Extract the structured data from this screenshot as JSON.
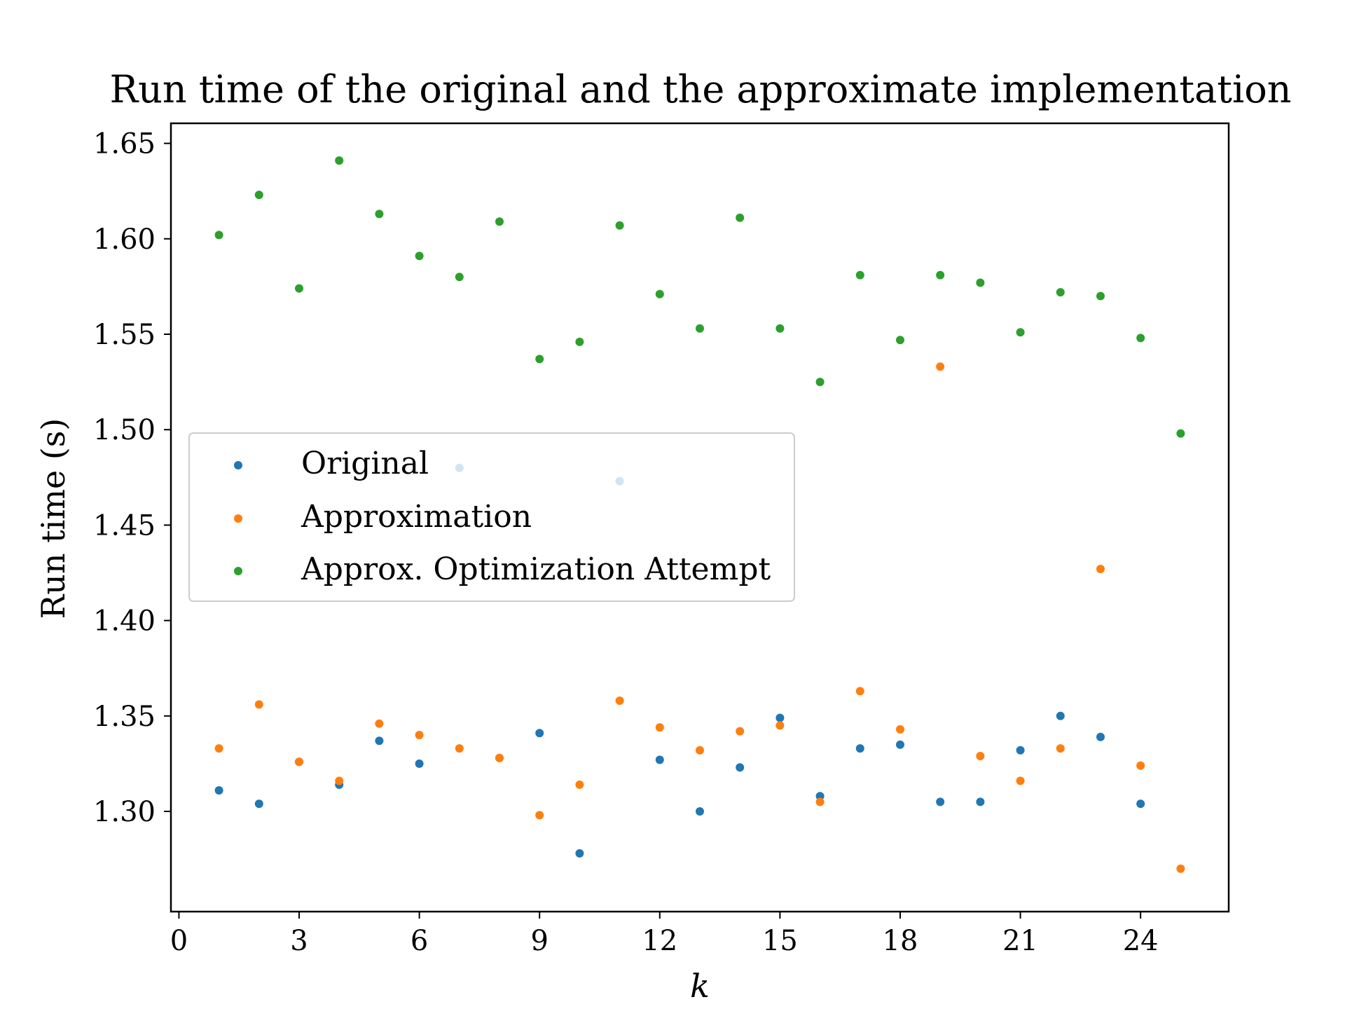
{
  "chart_data": {
    "type": "scatter",
    "title": "Run time of the original and the approximate implementation",
    "xlabel": "k",
    "ylabel": "Run time (s)",
    "xlim": [
      -0.2,
      26.2
    ],
    "ylim": [
      1.2475,
      1.6605
    ],
    "xticks": [
      0,
      3,
      6,
      9,
      12,
      15,
      18,
      21,
      24
    ],
    "xtick_labels": [
      "0",
      "3",
      "6",
      "9",
      "12",
      "15",
      "18",
      "21",
      "24"
    ],
    "yticks": [
      1.3,
      1.35,
      1.4,
      1.45,
      1.5,
      1.55,
      1.6,
      1.65
    ],
    "ytick_labels": [
      "1.30",
      "1.35",
      "1.40",
      "1.45",
      "1.50",
      "1.55",
      "1.60",
      "1.65"
    ],
    "grid": false,
    "legend": "center-left",
    "x": [
      1,
      2,
      3,
      4,
      5,
      6,
      7,
      8,
      9,
      10,
      11,
      12,
      13,
      14,
      15,
      16,
      17,
      18,
      19,
      20,
      21,
      22,
      23,
      24,
      25
    ],
    "series": [
      {
        "name": "Original",
        "color": "#1f77b4",
        "x": [
          1,
          2,
          3,
          4,
          5,
          6,
          7,
          8,
          9,
          10,
          11,
          12,
          13,
          14,
          15,
          16,
          17,
          18,
          19,
          20,
          21,
          22,
          23,
          24
        ],
        "values": [
          1.311,
          1.304,
          1.326,
          1.314,
          1.337,
          1.325,
          1.48,
          1.328,
          1.341,
          1.278,
          1.473,
          1.327,
          1.3,
          1.323,
          1.349,
          1.308,
          1.333,
          1.335,
          1.305,
          1.305,
          1.332,
          1.35,
          1.339,
          1.304
        ]
      },
      {
        "name": "Approximation",
        "color": "#ff7f0e",
        "x": [
          1,
          2,
          3,
          4,
          5,
          6,
          7,
          8,
          9,
          10,
          11,
          12,
          13,
          14,
          15,
          16,
          17,
          18,
          19,
          20,
          21,
          22,
          23,
          24,
          25
        ],
        "values": [
          1.333,
          1.356,
          1.326,
          1.316,
          1.346,
          1.34,
          1.333,
          1.328,
          1.298,
          1.314,
          1.358,
          1.344,
          1.332,
          1.342,
          1.345,
          1.305,
          1.363,
          1.343,
          1.533,
          1.329,
          1.316,
          1.333,
          1.427,
          1.324,
          1.27
        ]
      },
      {
        "name": "Approx. Optimization Attempt",
        "color": "#2ca02c",
        "x": [
          1,
          2,
          3,
          4,
          5,
          6,
          7,
          8,
          9,
          10,
          11,
          12,
          13,
          14,
          15,
          16,
          17,
          18,
          19,
          20,
          21,
          22,
          23,
          24,
          25
        ],
        "values": [
          1.602,
          1.623,
          1.574,
          1.641,
          1.613,
          1.591,
          1.58,
          1.609,
          1.537,
          1.546,
          1.607,
          1.571,
          1.553,
          1.611,
          1.553,
          1.525,
          1.581,
          1.547,
          1.581,
          1.577,
          1.551,
          1.572,
          1.57,
          1.548,
          1.498
        ]
      }
    ]
  }
}
